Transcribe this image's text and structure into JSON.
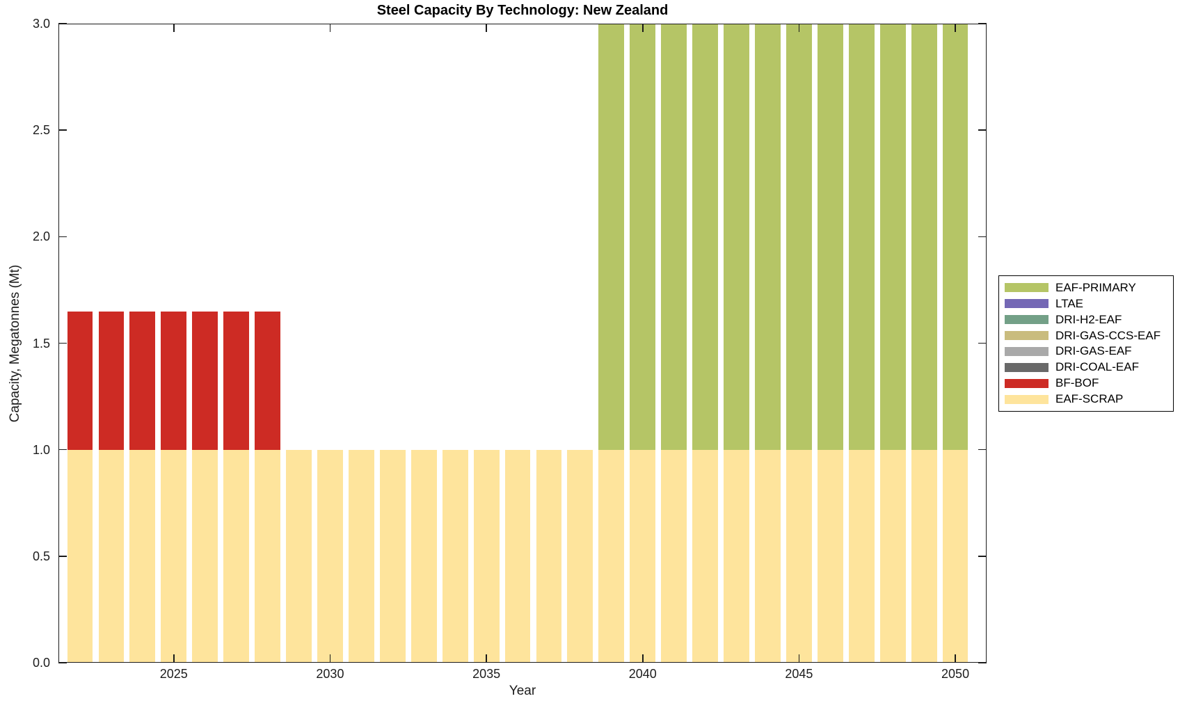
{
  "title": "Steel Capacity By Technology: New Zealand",
  "chart_data": {
    "type": "bar",
    "stacked": true,
    "title": "Steel Capacity By Technology: New Zealand",
    "xlabel": "Year",
    "ylabel": "Capacity, Megatonnes (Mt)",
    "years": [
      2022,
      2023,
      2024,
      2025,
      2026,
      2027,
      2028,
      2029,
      2030,
      2031,
      2032,
      2033,
      2034,
      2035,
      2036,
      2037,
      2038,
      2039,
      2040,
      2041,
      2042,
      2043,
      2044,
      2045,
      2046,
      2047,
      2048,
      2049,
      2050
    ],
    "xlim": [
      2021.31,
      2051.0
    ],
    "ylim": [
      0,
      3
    ],
    "xticks": [
      2025,
      2030,
      2035,
      2040,
      2045,
      2050
    ],
    "yticks": [
      0,
      0.5,
      1,
      1.5,
      2,
      2.5,
      3
    ],
    "ytick_labels": [
      "0.0",
      "0.5",
      "1.0",
      "1.5",
      "2.0",
      "2.5",
      "3.0"
    ],
    "grid": false,
    "legend_position": "outside-right",
    "bar_width_years": 0.82,
    "axis_color": "#1a1a1a",
    "colors": {
      "EAF-PRIMARY": "#b5c566",
      "LTAE": "#7468b5",
      "DRI-H2-EAF": "#73a087",
      "DRI-GAS-CCS-EAF": "#c9bc7e",
      "DRI-GAS-EAF": "#a9a9a9",
      "DRI-COAL-EAF": "#696969",
      "BF-BOF": "#cd2b24",
      "EAF-SCRAP": "#fee49c"
    },
    "legend_order": [
      "EAF-PRIMARY",
      "LTAE",
      "DRI-H2-EAF",
      "DRI-GAS-CCS-EAF",
      "DRI-GAS-EAF",
      "DRI-COAL-EAF",
      "BF-BOF",
      "EAF-SCRAP"
    ],
    "stack_order": [
      "EAF-SCRAP",
      "BF-BOF",
      "EAF-PRIMARY",
      "LTAE",
      "DRI-H2-EAF",
      "DRI-GAS-CCS-EAF",
      "DRI-GAS-EAF",
      "DRI-COAL-EAF"
    ],
    "series": {
      "EAF-SCRAP": {
        "values": [
          1,
          1,
          1,
          1,
          1,
          1,
          1,
          1,
          1,
          1,
          1,
          1,
          1,
          1,
          1,
          1,
          1,
          1,
          1,
          1,
          1,
          1,
          1,
          1,
          1,
          1,
          1,
          1,
          1
        ]
      },
      "BF-BOF": {
        "values": [
          0.65,
          0.65,
          0.65,
          0.65,
          0.65,
          0.65,
          0.65,
          0,
          0,
          0,
          0,
          0,
          0,
          0,
          0,
          0,
          0,
          0,
          0,
          0,
          0,
          0,
          0,
          0,
          0,
          0,
          0,
          0,
          0
        ]
      },
      "EAF-PRIMARY": {
        "values": [
          0,
          0,
          0,
          0,
          0,
          0,
          0,
          0,
          0,
          0,
          0,
          0,
          0,
          0,
          0,
          0,
          0,
          2,
          2,
          2,
          2,
          2,
          2,
          2,
          2,
          2,
          2,
          2,
          2
        ]
      },
      "LTAE": {
        "values": [
          0,
          0,
          0,
          0,
          0,
          0,
          0,
          0,
          0,
          0,
          0,
          0,
          0,
          0,
          0,
          0,
          0,
          0,
          0,
          0,
          0,
          0,
          0,
          0,
          0,
          0,
          0,
          0,
          0
        ]
      },
      "DRI-H2-EAF": {
        "values": [
          0,
          0,
          0,
          0,
          0,
          0,
          0,
          0,
          0,
          0,
          0,
          0,
          0,
          0,
          0,
          0,
          0,
          0,
          0,
          0,
          0,
          0,
          0,
          0,
          0,
          0,
          0,
          0,
          0
        ]
      },
      "DRI-GAS-CCS-EAF": {
        "values": [
          0,
          0,
          0,
          0,
          0,
          0,
          0,
          0,
          0,
          0,
          0,
          0,
          0,
          0,
          0,
          0,
          0,
          0,
          0,
          0,
          0,
          0,
          0,
          0,
          0,
          0,
          0,
          0,
          0
        ]
      },
      "DRI-GAS-EAF": {
        "values": [
          0,
          0,
          0,
          0,
          0,
          0,
          0,
          0,
          0,
          0,
          0,
          0,
          0,
          0,
          0,
          0,
          0,
          0,
          0,
          0,
          0,
          0,
          0,
          0,
          0,
          0,
          0,
          0,
          0
        ]
      },
      "DRI-COAL-EAF": {
        "values": [
          0,
          0,
          0,
          0,
          0,
          0,
          0,
          0,
          0,
          0,
          0,
          0,
          0,
          0,
          0,
          0,
          0,
          0,
          0,
          0,
          0,
          0,
          0,
          0,
          0,
          0,
          0,
          0,
          0
        ]
      }
    },
    "notes": "EAF-PRIMARY stacked bars reach the y-axis top (3.0 Mt); their tops are clipped at the axis limit."
  }
}
